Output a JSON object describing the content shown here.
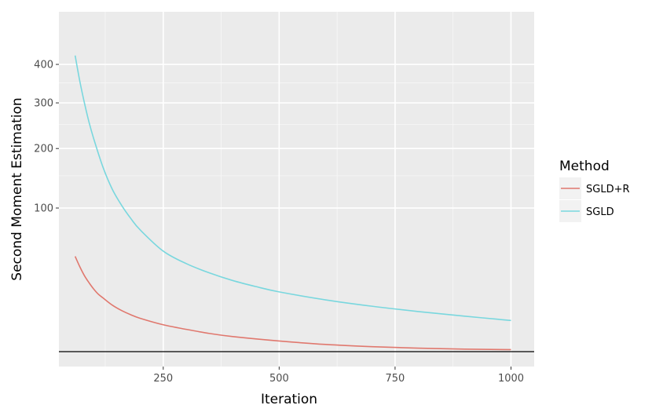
{
  "chart_data": {
    "type": "line",
    "xlabel": "Iteration",
    "ylabel": "Second Moment Estimation",
    "x_ticks": [
      250,
      500,
      750,
      1000
    ],
    "y_ticks": [
      100,
      200,
      300,
      400
    ],
    "y_scale": "sqrt",
    "xlim": [
      25,
      1050
    ],
    "ylim": [
      0,
      560
    ],
    "grid": true,
    "reference_line": {
      "y": 0,
      "color": "#000000"
    },
    "legend": {
      "title": "Method",
      "placement": "right"
    },
    "series": [
      {
        "name": "SGLD+R",
        "color": "#E0786E",
        "x": [
          60,
          70,
          80,
          90,
          100,
          110,
          120,
          140,
          160,
          180,
          200,
          250,
          300,
          350,
          400,
          500,
          600,
          700,
          800,
          900,
          1000
        ],
        "y": [
          44,
          35,
          28,
          23,
          19,
          16,
          14,
          10.5,
          8.2,
          6.6,
          5.4,
          3.5,
          2.4,
          1.6,
          1.1,
          0.55,
          0.25,
          0.12,
          0.06,
          0.03,
          0.02
        ]
      },
      {
        "name": "SGLD",
        "color": "#79D7DE",
        "x": [
          60,
          70,
          80,
          90,
          100,
          120,
          140,
          160,
          180,
          200,
          250,
          300,
          350,
          400,
          450,
          500,
          600,
          700,
          800,
          900,
          1000
        ],
        "y": [
          425,
          355,
          300,
          255,
          220,
          165,
          128,
          104,
          86,
          72,
          49,
          37.5,
          30,
          24.5,
          20.5,
          17.3,
          13,
          10,
          7.8,
          6.1,
          4.7
        ]
      }
    ]
  }
}
